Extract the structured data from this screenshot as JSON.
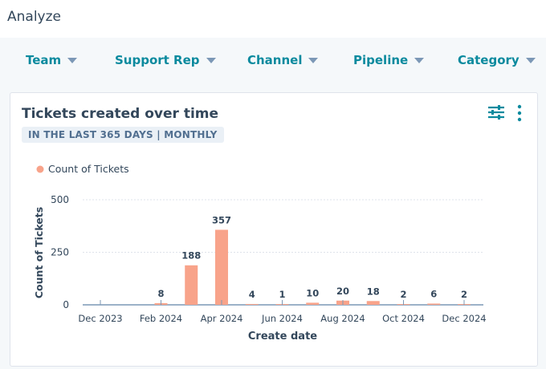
{
  "header": {
    "title": "Analyze"
  },
  "filters": [
    {
      "label": "Team"
    },
    {
      "label": "Support Rep"
    },
    {
      "label": "Channel"
    },
    {
      "label": "Pipeline"
    },
    {
      "label": "Category"
    }
  ],
  "card": {
    "title": "Tickets created over time",
    "badge": "IN THE LAST 365 DAYS | MONTHLY",
    "icons": [
      "filter-sliders-icon",
      "more-vertical-icon"
    ]
  },
  "chart_data": {
    "type": "bar",
    "title": "",
    "xlabel": "Create date",
    "ylabel": "Count of Tickets",
    "ylim": [
      0,
      500
    ],
    "yticks": [
      0,
      250,
      500
    ],
    "grid": true,
    "legend": {
      "position": "top-left",
      "entries": [
        "Count of Tickets"
      ]
    },
    "color": "#f8a38a",
    "categories": [
      "Dec 2023",
      "Jan 2024",
      "Feb 2024",
      "Mar 2024",
      "Apr 2024",
      "May 2024",
      "Jun 2024",
      "Jul 2024",
      "Aug 2024",
      "Sep 2024",
      "Oct 2024",
      "Nov 2024",
      "Dec 2024"
    ],
    "xtick_labels": [
      "Dec 2023",
      "Feb 2024",
      "Apr 2024",
      "Jun 2024",
      "Aug 2024",
      "Oct 2024",
      "Dec 2024"
    ],
    "series": [
      {
        "name": "Count of Tickets",
        "values": [
          null,
          null,
          8,
          188,
          357,
          4,
          1,
          10,
          20,
          18,
          2,
          6,
          2
        ]
      }
    ]
  }
}
